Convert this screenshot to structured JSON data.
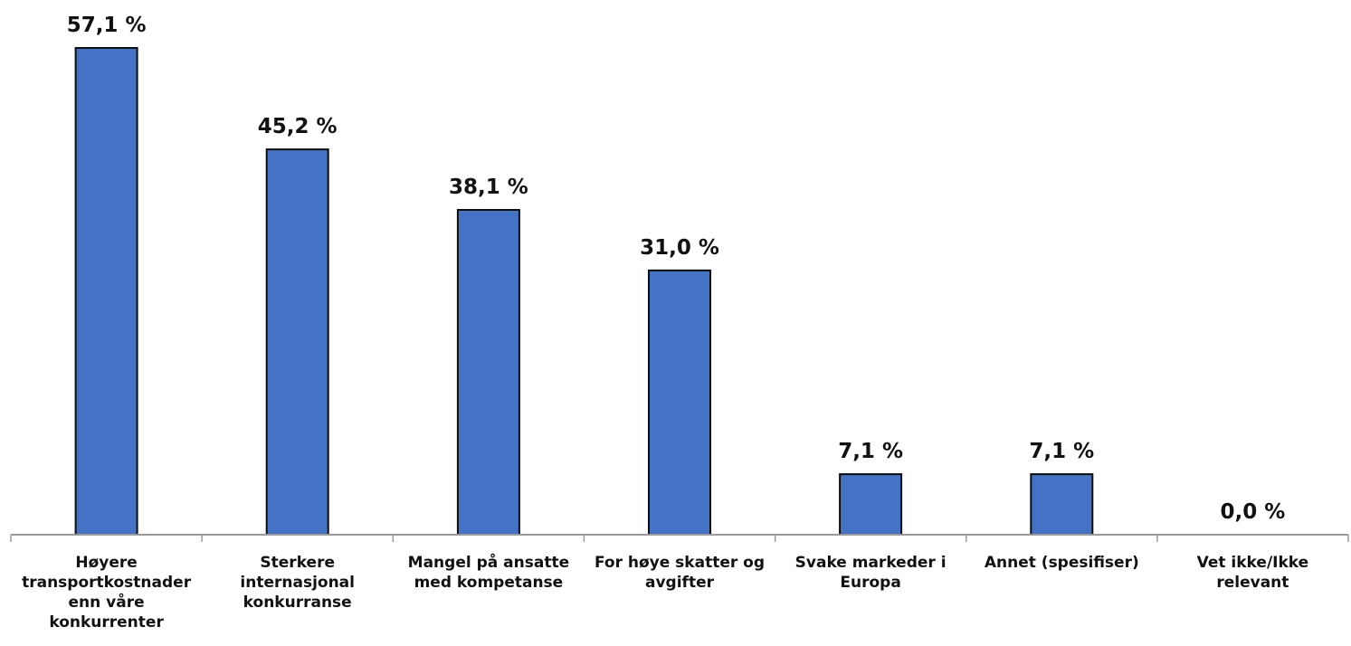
{
  "chart_data": {
    "type": "bar",
    "categories": [
      [
        "Høyere",
        "transportkostnader",
        "enn våre",
        "konkurrenter"
      ],
      [
        "Sterkere",
        "internasjonal",
        "konkurranse"
      ],
      [
        "Mangel på ansatte",
        "med kompetanse"
      ],
      [
        "For høye skatter og",
        "avgifter"
      ],
      [
        "Svake markeder i",
        "Europa"
      ],
      [
        "Annet (spesifiser)"
      ],
      [
        "Vet ikke/Ikke",
        "relevant"
      ]
    ],
    "values": [
      57.1,
      45.2,
      38.1,
      31.0,
      7.1,
      7.1,
      0.0
    ],
    "value_labels": [
      "57,1 %",
      "45,2 %",
      "38,1 %",
      "31,0 %",
      "7,1 %",
      "7,1 %",
      "0,0 %"
    ],
    "title": "",
    "xlabel": "",
    "ylabel": "",
    "ylim": [
      0,
      57.1
    ],
    "grid": false,
    "legend": "none",
    "bar_color": "#4472c4",
    "bar_border_color": "#0d0d0d",
    "axis_color": "#9a9a9a"
  }
}
